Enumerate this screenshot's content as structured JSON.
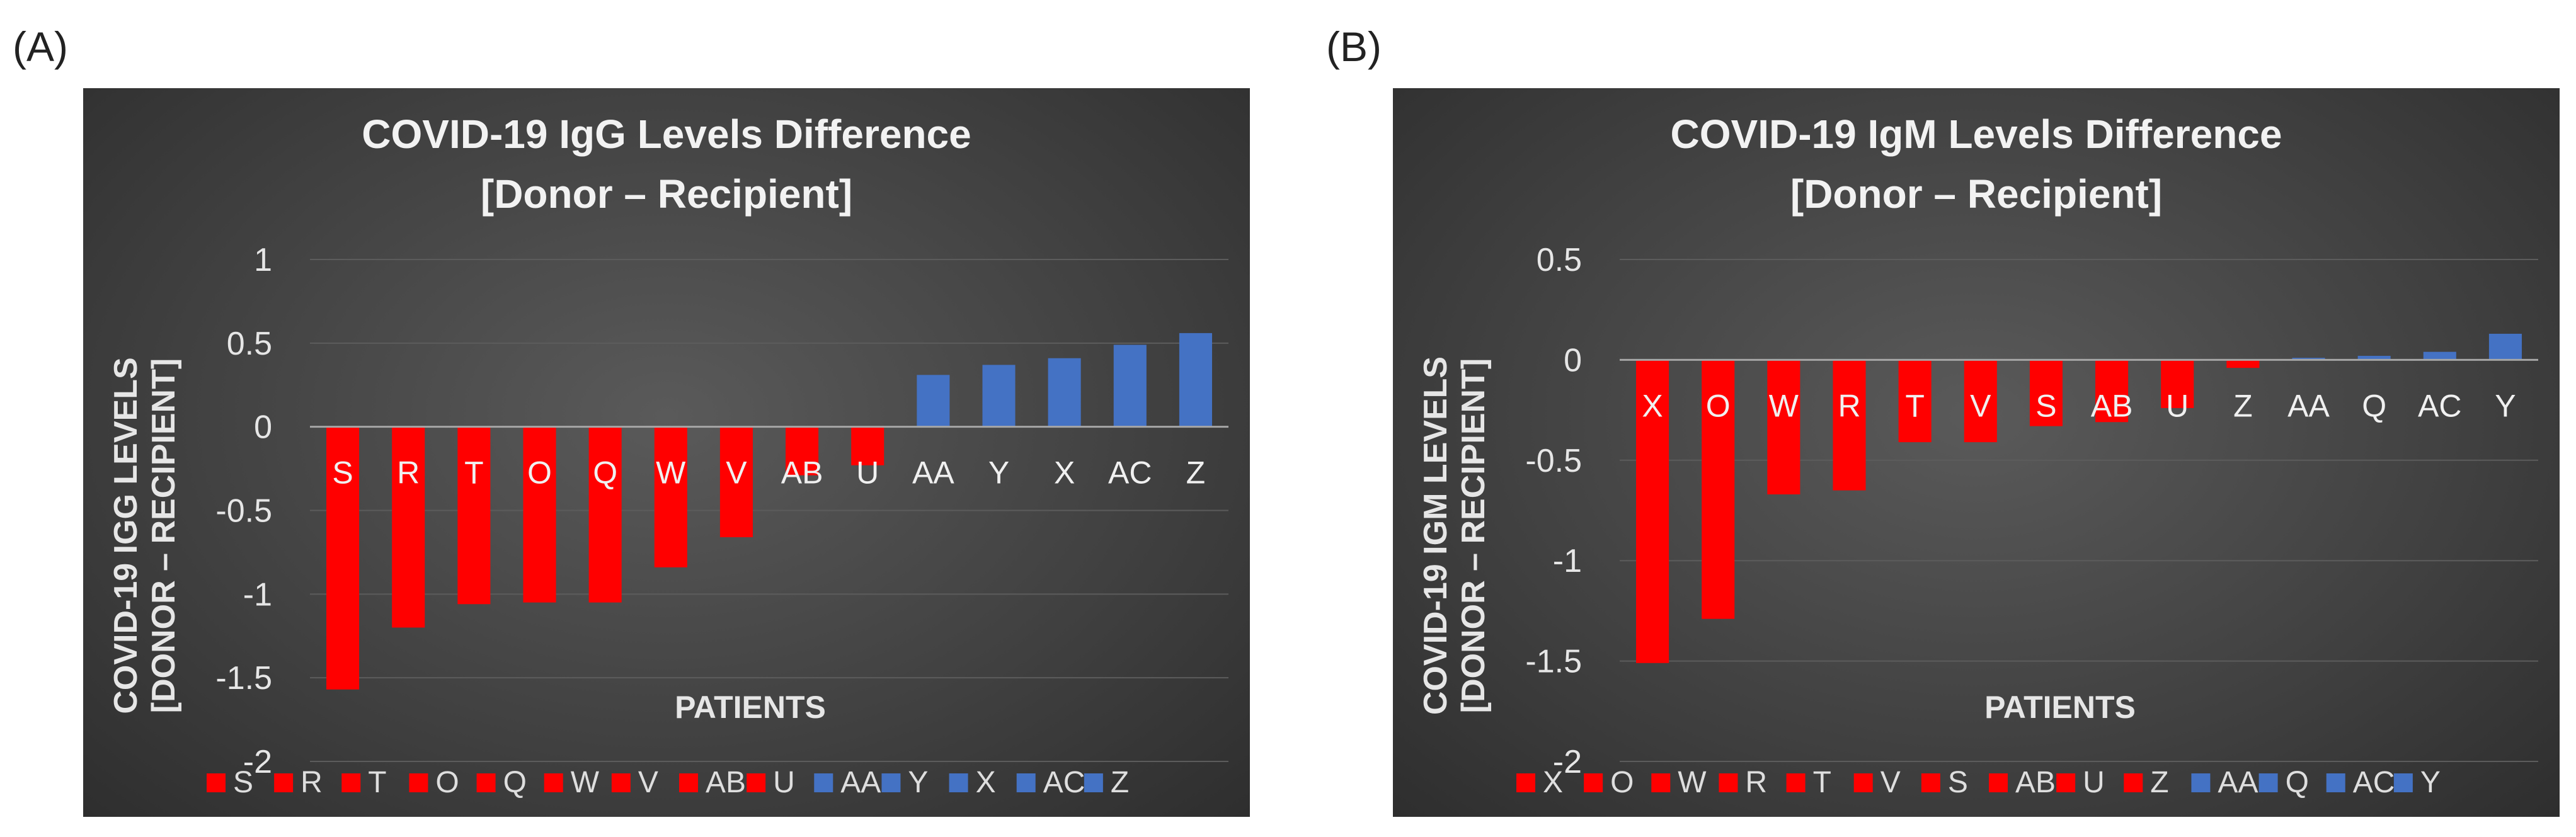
{
  "panels": {
    "a_label": "(A)",
    "b_label": "(B)"
  },
  "colors": {
    "negative": "#ff0000",
    "positive": "#4472c4"
  },
  "chart_data": [
    {
      "type": "bar",
      "title_lines": [
        "COVID-19 IgG Levels Difference",
        "[Donor – Recipient]"
      ],
      "ylabel_lines": [
        "COVID-19 IGG LEVELS",
        "[DONOR – RECIPIENT]"
      ],
      "xlabel": "PATIENTS",
      "categories": [
        "S",
        "R",
        "T",
        "O",
        "Q",
        "W",
        "V",
        "AB",
        "U",
        "AA",
        "Y",
        "X",
        "AC",
        "Z"
      ],
      "values": [
        -1.57,
        -1.2,
        -1.06,
        -1.05,
        -1.05,
        -0.84,
        -0.66,
        -0.29,
        -0.23,
        0.31,
        0.37,
        0.41,
        0.49,
        0.56
      ],
      "ylim": [
        -2,
        1
      ],
      "yticks": [
        1,
        0.5,
        0,
        -0.5,
        -1,
        -1.5,
        -2
      ],
      "ytick_labels": [
        "1",
        "0.5",
        "0",
        "-0.5",
        "-1",
        "-1.5",
        "-2"
      ],
      "grid": true,
      "legend": "bottom"
    },
    {
      "type": "bar",
      "title_lines": [
        "COVID-19 IgM Levels Difference",
        "[Donor – Recipient]"
      ],
      "ylabel_lines": [
        "COVID-19 IGM LEVELS",
        "[DONOR – RECIPIENT]"
      ],
      "xlabel": "PATIENTS",
      "categories": [
        "X",
        "O",
        "W",
        "R",
        "T",
        "V",
        "S",
        "AB",
        "U",
        "Z",
        "AA",
        "Q",
        "AC",
        "Y"
      ],
      "values": [
        -1.51,
        -1.29,
        -0.67,
        -0.65,
        -0.41,
        -0.41,
        -0.33,
        -0.31,
        -0.24,
        -0.04,
        0.01,
        0.02,
        0.04,
        0.13
      ],
      "ylim": [
        -2,
        0.5
      ],
      "yticks": [
        0.5,
        0,
        -0.5,
        -1,
        -1.5,
        -2
      ],
      "ytick_labels": [
        "0.5",
        "0",
        "-0.5",
        "-1",
        "-1.5",
        "-2"
      ],
      "grid": true,
      "legend": "bottom"
    }
  ]
}
